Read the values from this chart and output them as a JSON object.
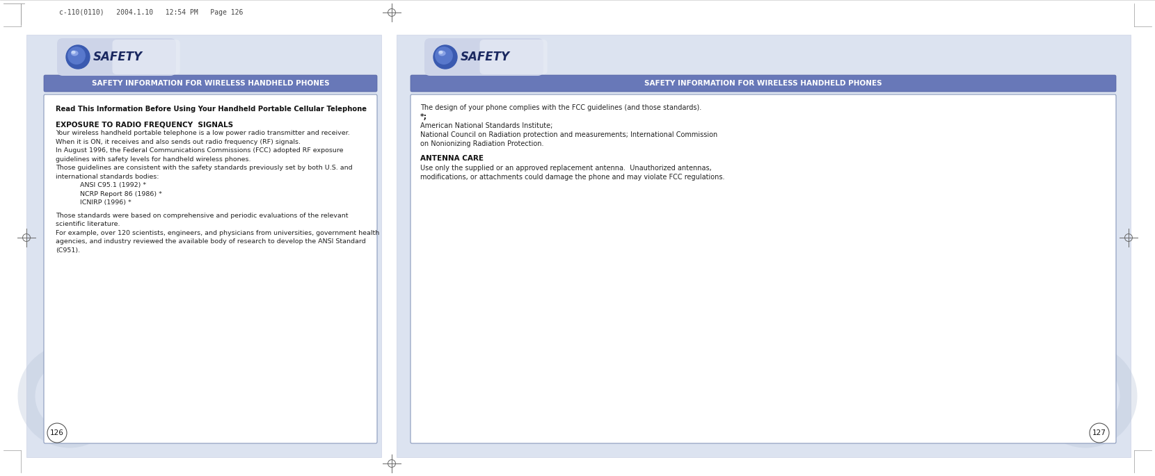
{
  "bg_color": "#dde3f0",
  "page_bg": "#ffffff",
  "header_bar_color": "#6878b8",
  "header_text_color": "#ffffff",
  "safety_text": "SAFETY",
  "header_label": "SAFETY INFORMATION FOR WIRELESS HANDHELD PHONES",
  "top_label": "c-110(0110)   2004.1.10   12:54 PM   Page 126",
  "page1_number": "126",
  "page2_number": "127",
  "page1_read_this": "Read This Information Before Using Your Handheld Portable Cellular Telephone",
  "page1_section1_title": "EXPOSURE TO RADIO FREQUENCY  SIGNALS",
  "page1_body1_lines": [
    "Your wireless handheld portable telephone is a low power radio transmitter and receiver.",
    "When it is ON, it receives and also sends out radio frequency (RF) signals.",
    "In August 1996, the Federal Communications Commissions (FCC) adopted RF exposure",
    "guidelines with safety levels for handheld wireless phones.",
    "Those guidelines are consistent with the safety standards previously set by both U.S. and",
    "international standards bodies:"
  ],
  "page1_bullets": [
    "ANSI C95.1 (1992) *",
    "NCRP Report 86 (1986) *",
    "ICNIRP (1996) *"
  ],
  "page1_body2_lines": [
    "Those standards were based on comprehensive and periodic evaluations of the relevant",
    "scientific literature.",
    "For example, over 120 scientists, engineers, and physicians from universities, government health",
    "agencies, and industry reviewed the available body of research to develop the ANSI Standard",
    "(C951)."
  ],
  "page2_body1_lines": [
    "The design of your phone complies with the FCC guidelines (and those standards).",
    "*;",
    "American National Standards Institute;",
    "National Council on Radiation protection and measurements; International Commission",
    "on Nonionizing Radiation Protection."
  ],
  "page2_section2_title": "ANTENNA CARE",
  "page2_body2_lines": [
    "Use only the supplied or an approved replacement antenna.  Unauthorized antennas,",
    "modifications, or attachments could damage the phone and may violate FCC regulations."
  ],
  "inner_box_border": "#8898bb",
  "text_color": "#222222",
  "crosshair_color": "#666666"
}
